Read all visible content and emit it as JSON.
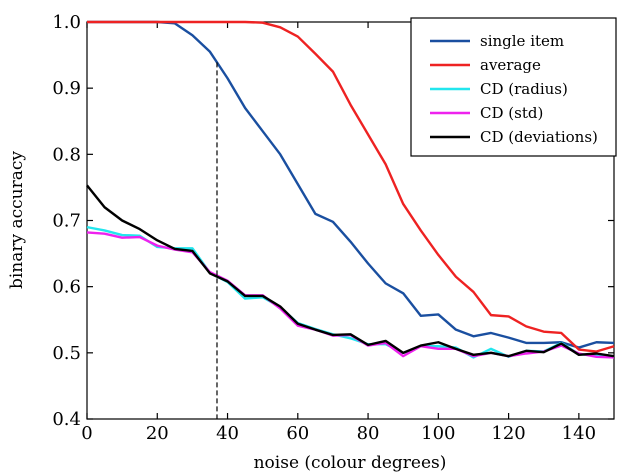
{
  "chart_data": {
    "type": "line",
    "xlabel": "noise (colour degrees)",
    "ylabel": "binary accuracy",
    "xlim": [
      0,
      150
    ],
    "ylim": [
      0.4,
      1.0
    ],
    "xticks": [
      0,
      20,
      40,
      60,
      80,
      100,
      120,
      140
    ],
    "yticks": [
      0.4,
      0.5,
      0.6,
      0.7,
      0.8,
      0.9,
      1.0
    ],
    "x_tick_labels": [
      "0",
      "20",
      "40",
      "60",
      "80",
      "100",
      "120",
      "140"
    ],
    "y_tick_labels": [
      "0.4",
      "0.5",
      "0.6",
      "0.7",
      "0.8",
      "0.9",
      "1.0"
    ],
    "grid": false,
    "legend_position": "top-right",
    "vline_x": 37,
    "x": [
      0,
      5,
      10,
      15,
      20,
      25,
      30,
      35,
      40,
      45,
      50,
      55,
      60,
      65,
      70,
      75,
      80,
      85,
      90,
      95,
      100,
      105,
      110,
      115,
      120,
      125,
      130,
      135,
      140,
      145,
      150
    ],
    "series": [
      {
        "name": "single item",
        "color": "#1a4fa0",
        "values": [
          1.0,
          1.0,
          1.0,
          1.0,
          1.0,
          0.998,
          0.98,
          0.955,
          0.915,
          0.87,
          0.835,
          0.8,
          0.755,
          0.71,
          0.698,
          0.668,
          0.635,
          0.605,
          0.59,
          0.556,
          0.558,
          0.535,
          0.525,
          0.53,
          0.523,
          0.515,
          0.515,
          0.516,
          0.508,
          0.516,
          0.515
        ]
      },
      {
        "name": "average",
        "color": "#ee2222",
        "values": [
          1.0,
          1.0,
          1.0,
          1.0,
          1.0,
          1.0,
          1.0,
          1.0,
          1.0,
          1.0,
          0.999,
          0.992,
          0.978,
          0.952,
          0.925,
          0.875,
          0.83,
          0.785,
          0.725,
          0.685,
          0.648,
          0.615,
          0.592,
          0.557,
          0.555,
          0.54,
          0.532,
          0.53,
          0.505,
          0.502,
          0.51
        ]
      },
      {
        "name": "CD (radius)",
        "color": "#22e6ee",
        "values": [
          0.69,
          0.685,
          0.678,
          0.677,
          0.66,
          0.658,
          0.658,
          0.621,
          0.607,
          0.582,
          0.584,
          0.569,
          0.545,
          0.536,
          0.528,
          0.522,
          0.513,
          0.513,
          0.5,
          0.51,
          0.51,
          0.508,
          0.493,
          0.506,
          0.494,
          0.503,
          0.502,
          0.515,
          0.498,
          0.496,
          0.495
        ]
      },
      {
        "name": "CD (std)",
        "color": "#ee22ee",
        "values": [
          0.682,
          0.68,
          0.674,
          0.675,
          0.662,
          0.656,
          0.652,
          0.622,
          0.609,
          0.587,
          0.587,
          0.567,
          0.541,
          0.535,
          0.526,
          0.527,
          0.511,
          0.515,
          0.495,
          0.51,
          0.506,
          0.506,
          0.495,
          0.5,
          0.495,
          0.499,
          0.502,
          0.511,
          0.499,
          0.494,
          0.493
        ]
      },
      {
        "name": "CD (deviations)",
        "color": "#000000",
        "values": [
          0.753,
          0.72,
          0.7,
          0.687,
          0.67,
          0.657,
          0.654,
          0.62,
          0.608,
          0.586,
          0.586,
          0.57,
          0.544,
          0.535,
          0.527,
          0.528,
          0.512,
          0.518,
          0.5,
          0.511,
          0.516,
          0.506,
          0.497,
          0.5,
          0.495,
          0.503,
          0.501,
          0.514,
          0.497,
          0.499,
          0.495
        ]
      }
    ]
  }
}
